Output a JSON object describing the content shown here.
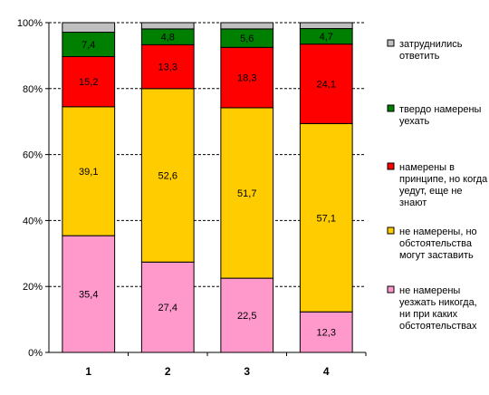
{
  "chart_data": {
    "type": "bar",
    "stacked": true,
    "percent": true,
    "categories": [
      "1",
      "2",
      "3",
      "4"
    ],
    "y_ticks": [
      "0%",
      "20%",
      "40%",
      "60%",
      "80%",
      "100%"
    ],
    "ylim": [
      0,
      100
    ],
    "grid": true,
    "legend_position": "right",
    "series": [
      {
        "name": "не намерены уезжать никогда, ни при каких обстоятельствах",
        "color": "#FF99CC",
        "values": [
          35.4,
          27.4,
          22.5,
          12.3
        ],
        "labels": [
          "35,4",
          "27,4",
          "22,5",
          "12,3"
        ]
      },
      {
        "name": "не намерены, но обстоятельства могут заставить",
        "color": "#FFCC00",
        "values": [
          39.1,
          52.6,
          51.7,
          57.1
        ],
        "labels": [
          "39,1",
          "52,6",
          "51,7",
          "57,1"
        ]
      },
      {
        "name": "намерены в принципе, но когда уедут, еще не знают",
        "color": "#FF0000",
        "values": [
          15.2,
          13.3,
          18.3,
          24.1
        ],
        "labels": [
          "15,2",
          "13,3",
          "18,3",
          "24,1"
        ]
      },
      {
        "name": "твердо намерены уехать",
        "color": "#008000",
        "values": [
          7.4,
          4.8,
          5.6,
          4.7
        ],
        "labels": [
          "7,4",
          "4,8",
          "5,6",
          "4,7"
        ]
      },
      {
        "name": "затруднились ответить",
        "color": "#C0C0C0",
        "values": [
          2.9,
          1.9,
          1.9,
          1.8
        ],
        "labels": [
          "",
          "",
          "",
          ""
        ]
      }
    ],
    "legend": [
      {
        "series": 4,
        "lines": [
          "затруднились",
          "ответить"
        ]
      },
      {
        "series": 3,
        "lines": [
          "твердо намерены",
          "уехать"
        ]
      },
      {
        "series": 2,
        "lines": [
          "намерены в",
          "принципе, но когда",
          "уедут, еще не",
          "знают"
        ]
      },
      {
        "series": 1,
        "lines": [
          "не намерены, но",
          "обстоятельства",
          "могут заставить"
        ]
      },
      {
        "series": 0,
        "lines": [
          "не намерены",
          "уезжать никогда,",
          "ни при каких",
          "обстоятельствах"
        ]
      }
    ]
  }
}
